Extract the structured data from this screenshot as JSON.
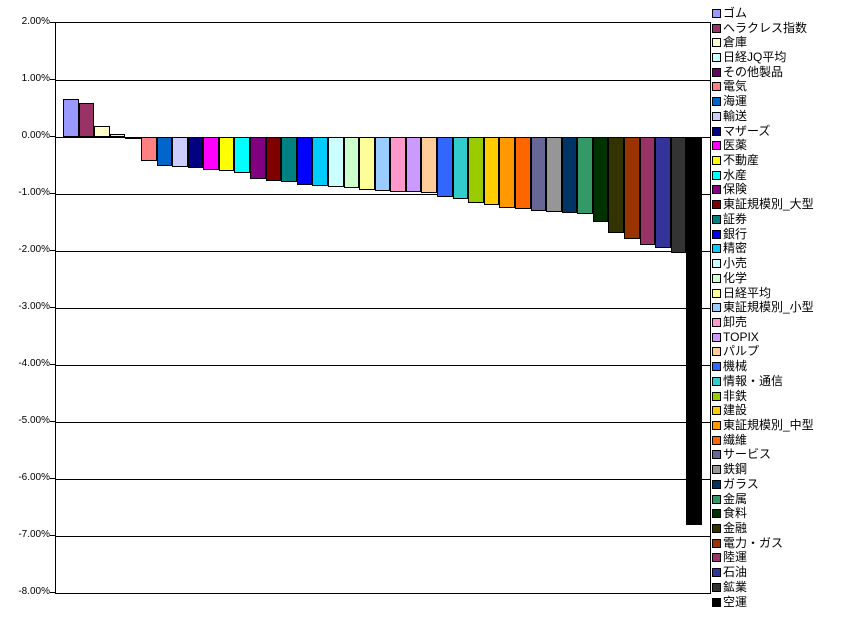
{
  "chart_data": {
    "type": "bar",
    "title": "",
    "xlabel": "",
    "ylabel": "",
    "ylim": [
      -8,
      2
    ],
    "ytick_step": 1,
    "yticks": [
      "2.00%",
      "1.00%",
      "0.00%",
      "-1.00%",
      "-2.00%",
      "-3.00%",
      "-4.00%",
      "-5.00%",
      "-6.00%",
      "-7.00%",
      "-8.00%"
    ],
    "grid": true,
    "legend_position": "right",
    "background_color": "#FFFFFF",
    "bar_border_color": "#000000",
    "series": [
      {
        "name": "ゴム",
        "value": 0.66,
        "color": "#9999FF"
      },
      {
        "name": "ヘラクレス指数",
        "value": 0.6,
        "color": "#993366"
      },
      {
        "name": "倉庫",
        "value": 0.19,
        "color": "#FFFFCC"
      },
      {
        "name": "日経JQ平均",
        "value": 0.05,
        "color": "#CCFFFF"
      },
      {
        "name": "その他製品",
        "value": -0.04,
        "color": "#660066"
      },
      {
        "name": "電気",
        "value": -0.42,
        "color": "#FF8080"
      },
      {
        "name": "海運",
        "value": -0.5,
        "color": "#0066CC"
      },
      {
        "name": "輸送",
        "value": -0.52,
        "color": "#CCCCFF"
      },
      {
        "name": "マザーズ",
        "value": -0.55,
        "color": "#000080"
      },
      {
        "name": "医薬",
        "value": -0.58,
        "color": "#FF00FF"
      },
      {
        "name": "不動産",
        "value": -0.59,
        "color": "#FFFF00"
      },
      {
        "name": "水産",
        "value": -0.64,
        "color": "#00FFFF"
      },
      {
        "name": "保険",
        "value": -0.73,
        "color": "#800080"
      },
      {
        "name": "東証規模別_大型",
        "value": -0.77,
        "color": "#800000"
      },
      {
        "name": "証券",
        "value": -0.79,
        "color": "#008080"
      },
      {
        "name": "銀行",
        "value": -0.84,
        "color": "#0000FF"
      },
      {
        "name": "精密",
        "value": -0.86,
        "color": "#00CCFF"
      },
      {
        "name": "小売",
        "value": -0.88,
        "color": "#CCFFFF"
      },
      {
        "name": "化学",
        "value": -0.9,
        "color": "#CCFFCC"
      },
      {
        "name": "日経平均",
        "value": -0.93,
        "color": "#FFFF99"
      },
      {
        "name": "東証規模別_小型",
        "value": -0.94,
        "color": "#99CCFF"
      },
      {
        "name": "卸売",
        "value": -0.96,
        "color": "#FF99CC"
      },
      {
        "name": "TOPIX",
        "value": -0.97,
        "color": "#CC99FF"
      },
      {
        "name": "パルプ",
        "value": -0.99,
        "color": "#FFCC99"
      },
      {
        "name": "機械",
        "value": -1.06,
        "color": "#3366FF"
      },
      {
        "name": "情報・通信",
        "value": -1.08,
        "color": "#33CCCC"
      },
      {
        "name": "非鉄",
        "value": -1.16,
        "color": "#99CC00"
      },
      {
        "name": "建設",
        "value": -1.19,
        "color": "#FFCC00"
      },
      {
        "name": "東証規模別_中型",
        "value": -1.24,
        "color": "#FF9900"
      },
      {
        "name": "繊維",
        "value": -1.26,
        "color": "#FF6600"
      },
      {
        "name": "サービス",
        "value": -1.29,
        "color": "#666699"
      },
      {
        "name": "鉄鋼",
        "value": -1.31,
        "color": "#969696"
      },
      {
        "name": "ガラス",
        "value": -1.33,
        "color": "#003366"
      },
      {
        "name": "金属",
        "value": -1.35,
        "color": "#339966"
      },
      {
        "name": "食料",
        "value": -1.49,
        "color": "#003300"
      },
      {
        "name": "金融",
        "value": -1.68,
        "color": "#333300"
      },
      {
        "name": "電力・ガス",
        "value": -1.79,
        "color": "#993300"
      },
      {
        "name": "陸運",
        "value": -1.89,
        "color": "#993366"
      },
      {
        "name": "石油",
        "value": -1.94,
        "color": "#333399"
      },
      {
        "name": "鉱業",
        "value": -2.03,
        "color": "#333333"
      },
      {
        "name": "空運",
        "value": -6.8,
        "color": "#000000"
      }
    ]
  }
}
